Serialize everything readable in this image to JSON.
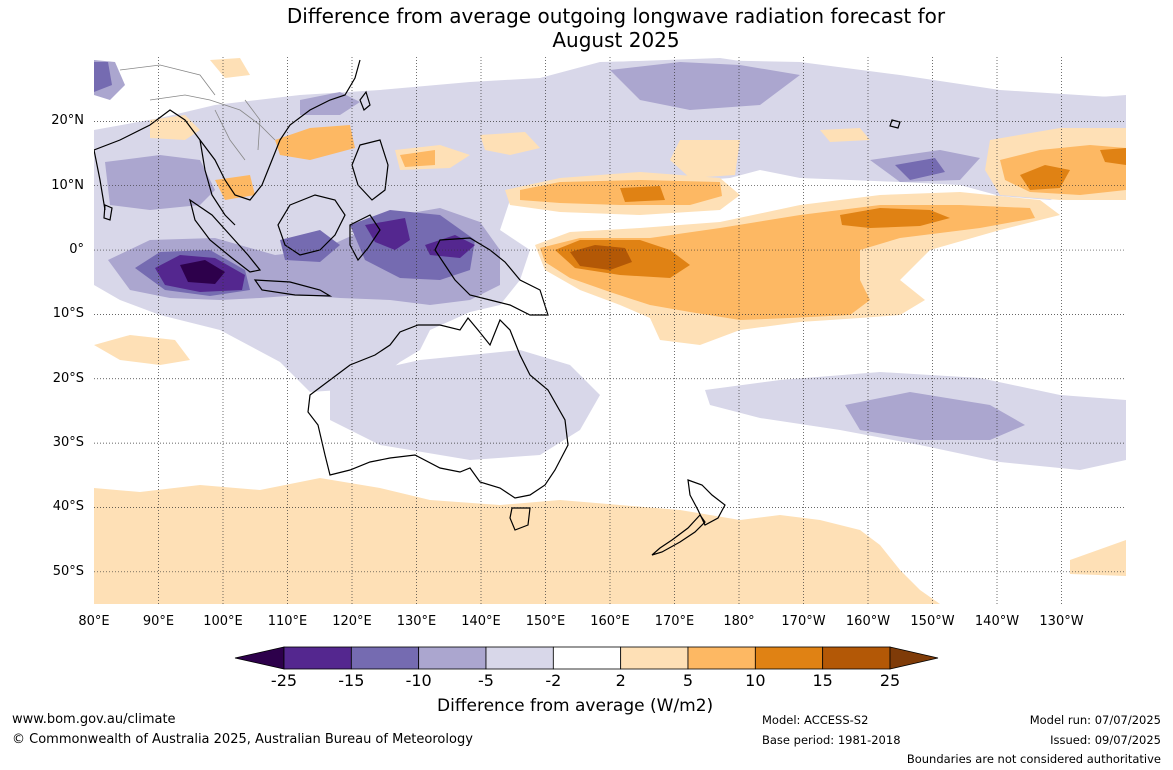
{
  "title": {
    "line1": "Difference from average outgoing longwave radiation forecast for",
    "line2": "August 2025"
  },
  "map": {
    "lat_labels": [
      "20°N",
      "10°N",
      "0°",
      "10°S",
      "20°S",
      "30°S",
      "40°S",
      "50°S"
    ],
    "lon_labels": [
      "80°E",
      "90°E",
      "100°E",
      "110°E",
      "120°E",
      "130°E",
      "140°E",
      "150°E",
      "160°E",
      "170°E",
      "180°",
      "170°W",
      "160°W",
      "150°W",
      "140°W",
      "130°W"
    ],
    "extent": {
      "lon_min": 80,
      "lon_max": 240,
      "lat_min": -55,
      "lat_max": 30
    }
  },
  "colorbar": {
    "ticks": [
      "-25",
      "-15",
      "-10",
      "-5",
      "-2",
      "2",
      "5",
      "10",
      "15",
      "25"
    ],
    "colors": [
      "#54278f",
      "#756bb1",
      "#aba6cf",
      "#d8d7e9",
      "#ffffff",
      "#fee0b6",
      "#fdb863",
      "#e08214",
      "#b35806"
    ],
    "extend_low_color": "#2d004b",
    "extend_high_color": "#7f3b08",
    "label": "Difference from average (W/m2)"
  },
  "footer": {
    "website": "www.bom.gov.au/climate",
    "copyright": "© Commonwealth of Australia 2025, Australian Bureau of Meteorology",
    "model": "Model: ACCESS-S2",
    "base_period": "Base period: 1981-2018",
    "model_run": "Model run: 07/07/2025",
    "issued": "Issued: 09/07/2025",
    "disclaimer": "Boundaries are not considered authoritative"
  }
}
